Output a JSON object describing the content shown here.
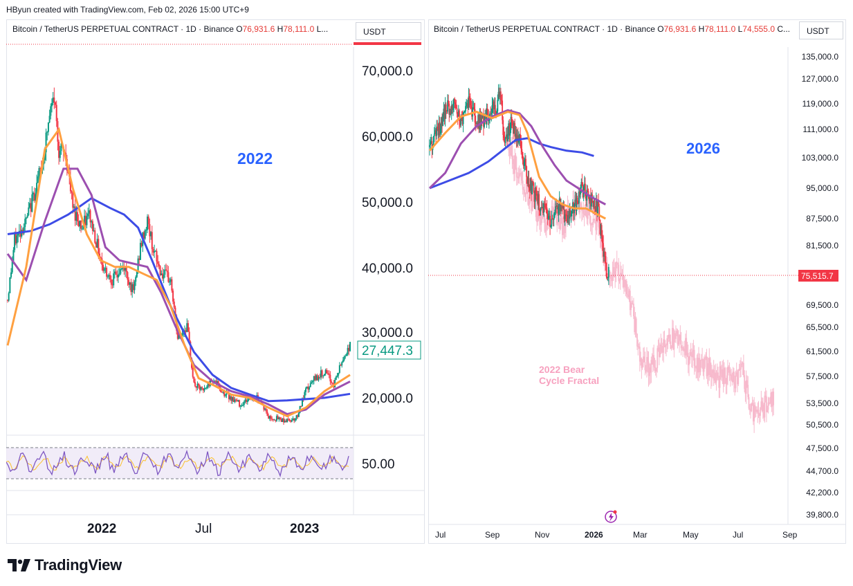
{
  "header": {
    "attribution": "HByun created with TradingView.com, Feb 02, 2026 15:00 UTC+9"
  },
  "left_chart": {
    "symbol": "Bitcoin / TetherUS PERPETUAL CONTRACT · 1D · Binance",
    "o_label": "O",
    "o_value": "76,931.6",
    "h_label": "H",
    "h_value": "78,111.0",
    "l_label": "L...",
    "currency": "USDT",
    "year_label": "2022",
    "price_ticks": [
      "70,000.0",
      "60,000.0",
      "50,000.0",
      "40,000.0",
      "30,000.0",
      "20,000.0"
    ],
    "last_price": "27,447.3",
    "rsi_label": "50.00",
    "time_ticks": [
      "2022",
      "Jul",
      "2023"
    ]
  },
  "right_chart": {
    "symbol": "Bitcoin / TetherUS PERPETUAL CONTRACT · 1D · Binance",
    "o_label": "O",
    "o_value": "76,931.6",
    "h_label": "H",
    "h_value": "78,111.0",
    "l_label": "L",
    "l_value": "74,555.0",
    "c_label": "C...",
    "currency": "USDT",
    "year_label": "2026",
    "fractal_line1": "2022 Bear",
    "fractal_line2": "Cycle Fractal",
    "price_ticks": [
      "135,000.0",
      "127,000.0",
      "119,000.0",
      "111,000.0",
      "103,000.0",
      "95,000.0",
      "87,500.0",
      "81,500.0",
      "69,500.0",
      "65,500.0",
      "61,500.0",
      "57,500.0",
      "53,500.0",
      "50,500.0",
      "47,500.0",
      "44,700.0",
      "42,200.0",
      "39,800.0"
    ],
    "last_price": "75,515.7",
    "time_ticks": [
      "Jul",
      "Sep",
      "Nov",
      "2026",
      "Mar",
      "May",
      "Jul",
      "Sep"
    ]
  },
  "footer": {
    "brand": "TradingView"
  },
  "colors": {
    "up": "#089981",
    "down": "#f23645",
    "ma_orange": "#ffa040",
    "ma_purple": "#9c4fb0",
    "ma_blue": "#3d4ce6",
    "fractal": "#f7b9cc",
    "year_text": "#2962ff"
  },
  "chart_data": [
    {
      "type": "candlestick",
      "title": "Bitcoin / TetherUS PERPETUAL CONTRACT · 1D · Binance (2022)",
      "ylim": [
        15000,
        76000
      ],
      "x_ticks": [
        "2022",
        "Jul",
        "2023"
      ],
      "close_path": [
        [
          0,
          35000
        ],
        [
          3,
          44000
        ],
        [
          8,
          47000
        ],
        [
          12,
          52000
        ],
        [
          15,
          56000
        ],
        [
          18,
          63000
        ],
        [
          20,
          66000
        ],
        [
          22,
          58000
        ],
        [
          25,
          57000
        ],
        [
          28,
          49000
        ],
        [
          32,
          46000
        ],
        [
          35,
          48000
        ],
        [
          38,
          44000
        ],
        [
          41,
          40000
        ],
        [
          45,
          38000
        ],
        [
          50,
          40000
        ],
        [
          54,
          36000
        ],
        [
          57,
          43000
        ],
        [
          60,
          47000
        ],
        [
          63,
          42000
        ],
        [
          66,
          39000
        ],
        [
          70,
          38000
        ],
        [
          73,
          29000
        ],
        [
          77,
          31000
        ],
        [
          80,
          22000
        ],
        [
          84,
          21000
        ],
        [
          88,
          23000
        ],
        [
          92,
          21000
        ],
        [
          96,
          20000
        ],
        [
          100,
          19000
        ],
        [
          104,
          20000
        ],
        [
          108,
          20000
        ],
        [
          112,
          17000
        ],
        [
          116,
          16800
        ],
        [
          120,
          16500
        ],
        [
          124,
          17000
        ],
        [
          128,
          21000
        ],
        [
          132,
          23000
        ],
        [
          136,
          24000
        ],
        [
          140,
          22000
        ],
        [
          144,
          26000
        ],
        [
          147,
          28000
        ]
      ],
      "ma_fast": [
        [
          0,
          28000
        ],
        [
          8,
          40000
        ],
        [
          16,
          58000
        ],
        [
          22,
          61000
        ],
        [
          28,
          52000
        ],
        [
          34,
          45000
        ],
        [
          40,
          41000
        ],
        [
          46,
          40000
        ],
        [
          52,
          40000
        ],
        [
          58,
          39000
        ],
        [
          64,
          38000
        ],
        [
          70,
          34000
        ],
        [
          76,
          28000
        ],
        [
          82,
          23000
        ],
        [
          88,
          22000
        ],
        [
          96,
          20500
        ],
        [
          104,
          20000
        ],
        [
          112,
          18500
        ],
        [
          120,
          17200
        ],
        [
          128,
          18500
        ],
        [
          136,
          21000
        ],
        [
          147,
          23500
        ]
      ],
      "ma_mid": [
        [
          0,
          42000
        ],
        [
          8,
          38000
        ],
        [
          16,
          47000
        ],
        [
          24,
          55000
        ],
        [
          30,
          55000
        ],
        [
          36,
          51000
        ],
        [
          42,
          43000
        ],
        [
          48,
          41000
        ],
        [
          54,
          40500
        ],
        [
          60,
          40000
        ],
        [
          66,
          36000
        ],
        [
          72,
          31000
        ],
        [
          80,
          25000
        ],
        [
          88,
          22500
        ],
        [
          96,
          21000
        ],
        [
          104,
          20200
        ],
        [
          112,
          19000
        ],
        [
          120,
          17500
        ],
        [
          128,
          18200
        ],
        [
          136,
          20500
        ],
        [
          147,
          22500
        ]
      ],
      "ma_slow": [
        [
          0,
          45000
        ],
        [
          10,
          45500
        ],
        [
          18,
          46500
        ],
        [
          26,
          48000
        ],
        [
          36,
          50500
        ],
        [
          44,
          49000
        ],
        [
          50,
          48000
        ],
        [
          56,
          46000
        ],
        [
          62,
          41000
        ],
        [
          70,
          34000
        ],
        [
          80,
          27000
        ],
        [
          88,
          23500
        ],
        [
          96,
          21500
        ],
        [
          104,
          20500
        ],
        [
          112,
          19500
        ],
        [
          120,
          19600
        ],
        [
          128,
          19800
        ],
        [
          136,
          20000
        ],
        [
          147,
          20600
        ]
      ],
      "last_price": 27447.3,
      "rsi": {
        "mid_label": 50.0
      }
    },
    {
      "type": "candlestick",
      "title": "Bitcoin / TetherUS PERPETUAL CONTRACT · 1D · Binance (2025-2026)",
      "ylim": [
        39800,
        140000
      ],
      "x_ticks": [
        "Jul",
        "Sep",
        "Nov",
        "2026",
        "Mar",
        "May",
        "Jul",
        "Sep"
      ],
      "close_path": [
        [
          0,
          106000
        ],
        [
          4,
          110000
        ],
        [
          8,
          117000
        ],
        [
          12,
          118500
        ],
        [
          16,
          114000
        ],
        [
          20,
          120000
        ],
        [
          24,
          113000
        ],
        [
          28,
          114000
        ],
        [
          32,
          118000
        ],
        [
          34,
          116000
        ],
        [
          36,
          124000
        ],
        [
          38,
          108000
        ],
        [
          42,
          113000
        ],
        [
          46,
          108000
        ],
        [
          50,
          98000
        ],
        [
          54,
          93000
        ],
        [
          58,
          90000
        ],
        [
          62,
          86000
        ],
        [
          66,
          91000
        ],
        [
          70,
          88000
        ],
        [
          74,
          90000
        ],
        [
          78,
          95000
        ],
        [
          82,
          92000
        ],
        [
          86,
          90000
        ],
        [
          88,
          83000
        ],
        [
          90,
          77000
        ],
        [
          92,
          75515.7
        ]
      ],
      "projection": [
        [
          92,
          75500
        ],
        [
          96,
          76000
        ],
        [
          100,
          74000
        ],
        [
          104,
          68000
        ],
        [
          108,
          60000
        ],
        [
          112,
          59000
        ],
        [
          116,
          60000
        ],
        [
          120,
          62000
        ],
        [
          124,
          63500
        ],
        [
          128,
          64500
        ],
        [
          132,
          61000
        ],
        [
          136,
          60000
        ],
        [
          140,
          59500
        ],
        [
          144,
          58500
        ],
        [
          148,
          57500
        ],
        [
          152,
          58000
        ],
        [
          156,
          57000
        ],
        [
          160,
          58500
        ],
        [
          164,
          52500
        ],
        [
          168,
          51500
        ],
        [
          172,
          53500
        ],
        [
          176,
          54500
        ]
      ],
      "ma_fast": [
        [
          0,
          105000
        ],
        [
          8,
          110000
        ],
        [
          16,
          115000
        ],
        [
          24,
          116500
        ],
        [
          32,
          114500
        ],
        [
          40,
          116500
        ],
        [
          46,
          115500
        ],
        [
          50,
          110000
        ],
        [
          56,
          98000
        ],
        [
          62,
          93000
        ],
        [
          68,
          91000
        ],
        [
          74,
          90000
        ],
        [
          80,
          90000
        ],
        [
          86,
          88500
        ],
        [
          90,
          87500
        ]
      ],
      "ma_mid": [
        [
          0,
          95000
        ],
        [
          8,
          99000
        ],
        [
          16,
          107000
        ],
        [
          24,
          112000
        ],
        [
          32,
          115000
        ],
        [
          40,
          117000
        ],
        [
          46,
          116000
        ],
        [
          52,
          112000
        ],
        [
          58,
          106000
        ],
        [
          64,
          101000
        ],
        [
          70,
          97000
        ],
        [
          76,
          95000
        ],
        [
          82,
          93000
        ],
        [
          90,
          91000
        ]
      ],
      "ma_slow": [
        [
          0,
          95000
        ],
        [
          10,
          97000
        ],
        [
          20,
          99000
        ],
        [
          30,
          102000
        ],
        [
          36,
          104500
        ],
        [
          44,
          108000
        ],
        [
          50,
          108500
        ],
        [
          56,
          107000
        ],
        [
          62,
          106000
        ],
        [
          70,
          105000
        ],
        [
          78,
          104500
        ],
        [
          84,
          103500
        ]
      ],
      "last_price": 75515.7,
      "annotations": [
        "2026",
        "2022 Bear Cycle Fractal"
      ]
    }
  ]
}
